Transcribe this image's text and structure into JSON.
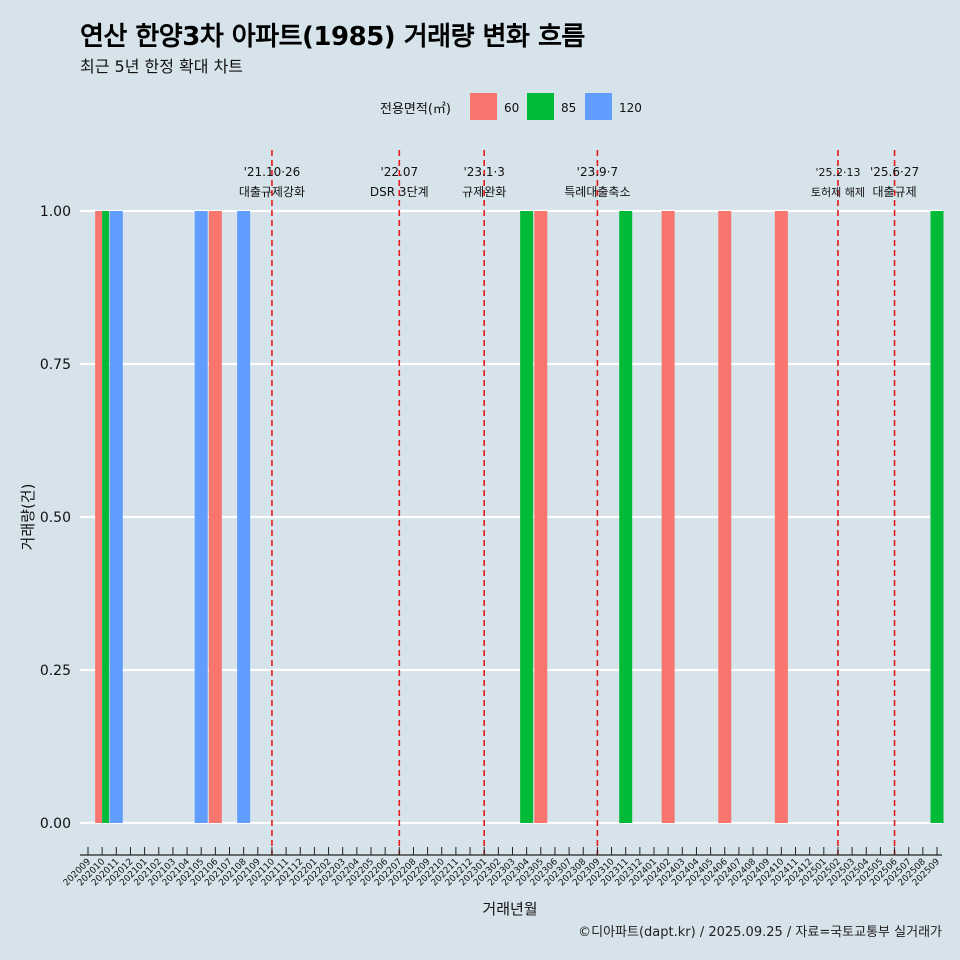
{
  "title": "연산 한양3차 아파트(1985) 거래량 변화 흐름",
  "subtitle": "최근 5년 한정 확대 차트",
  "caption": "©디아파트(dapt.kr) / 2025.09.25 / 자료=국토교통부 실거래가",
  "colors": {
    "background": "#d6e3ea",
    "s60": "#f8766d",
    "s85": "#00ba38",
    "s120": "#619cff",
    "event": "#e41a1c",
    "grid": "#ffffff"
  },
  "chart_data": {
    "type": "bar",
    "title": "연산 한양3차 아파트(1985) 거래량 변화 흐름",
    "xlabel": "거래년월",
    "ylabel": "거래량(건)",
    "ylim": [
      0,
      1
    ],
    "yticks": [
      "0.00",
      "0.25",
      "0.50",
      "0.75",
      "1.00"
    ],
    "legend": {
      "title": "전용면적(㎡)",
      "position": "top"
    },
    "categories": [
      "202009",
      "202010",
      "202011",
      "202012",
      "202101",
      "202102",
      "202103",
      "202104",
      "202105",
      "202106",
      "202107",
      "202108",
      "202109",
      "202110",
      "202111",
      "202112",
      "202201",
      "202202",
      "202203",
      "202204",
      "202205",
      "202206",
      "202207",
      "202208",
      "202209",
      "202210",
      "202211",
      "202212",
      "202301",
      "202302",
      "202303",
      "202304",
      "202305",
      "202306",
      "202307",
      "202308",
      "202309",
      "202310",
      "202311",
      "202312",
      "202401",
      "202402",
      "202403",
      "202404",
      "202405",
      "202406",
      "202407",
      "202408",
      "202409",
      "202410",
      "202411",
      "202412",
      "202501",
      "202502",
      "202503",
      "202504",
      "202505",
      "202506",
      "202507",
      "202508",
      "202509"
    ],
    "series": [
      {
        "name": "60",
        "color": "#f8766d",
        "points": [
          {
            "x": "202010",
            "y": 1
          },
          {
            "x": "202106",
            "y": 1
          },
          {
            "x": "202305",
            "y": 1
          },
          {
            "x": "202402",
            "y": 1
          },
          {
            "x": "202406",
            "y": 1
          },
          {
            "x": "202410",
            "y": 1
          }
        ]
      },
      {
        "name": "85",
        "color": "#00ba38",
        "points": [
          {
            "x": "202010",
            "y": 1
          },
          {
            "x": "202304",
            "y": 1
          },
          {
            "x": "202311",
            "y": 1
          },
          {
            "x": "202509",
            "y": 1
          }
        ]
      },
      {
        "name": "120",
        "color": "#619cff",
        "points": [
          {
            "x": "202011",
            "y": 1
          },
          {
            "x": "202105",
            "y": 1
          },
          {
            "x": "202108",
            "y": 1
          }
        ]
      }
    ],
    "events": [
      {
        "at": "202110",
        "date": "'21.10·26",
        "label": "대출규제강화"
      },
      {
        "at": "202207",
        "date": "'22.07",
        "label": "DSR 3단계"
      },
      {
        "at": "202301",
        "date": "'23.1·3",
        "label": "규제완화"
      },
      {
        "at": "202309",
        "date": "'23.9·7",
        "label": "특례대출축소"
      },
      {
        "at": "202502",
        "date": "'25.2·13",
        "label": "토허제 해제"
      },
      {
        "at": "202506",
        "date": "'25.6·27",
        "label": "대출규제"
      }
    ]
  }
}
